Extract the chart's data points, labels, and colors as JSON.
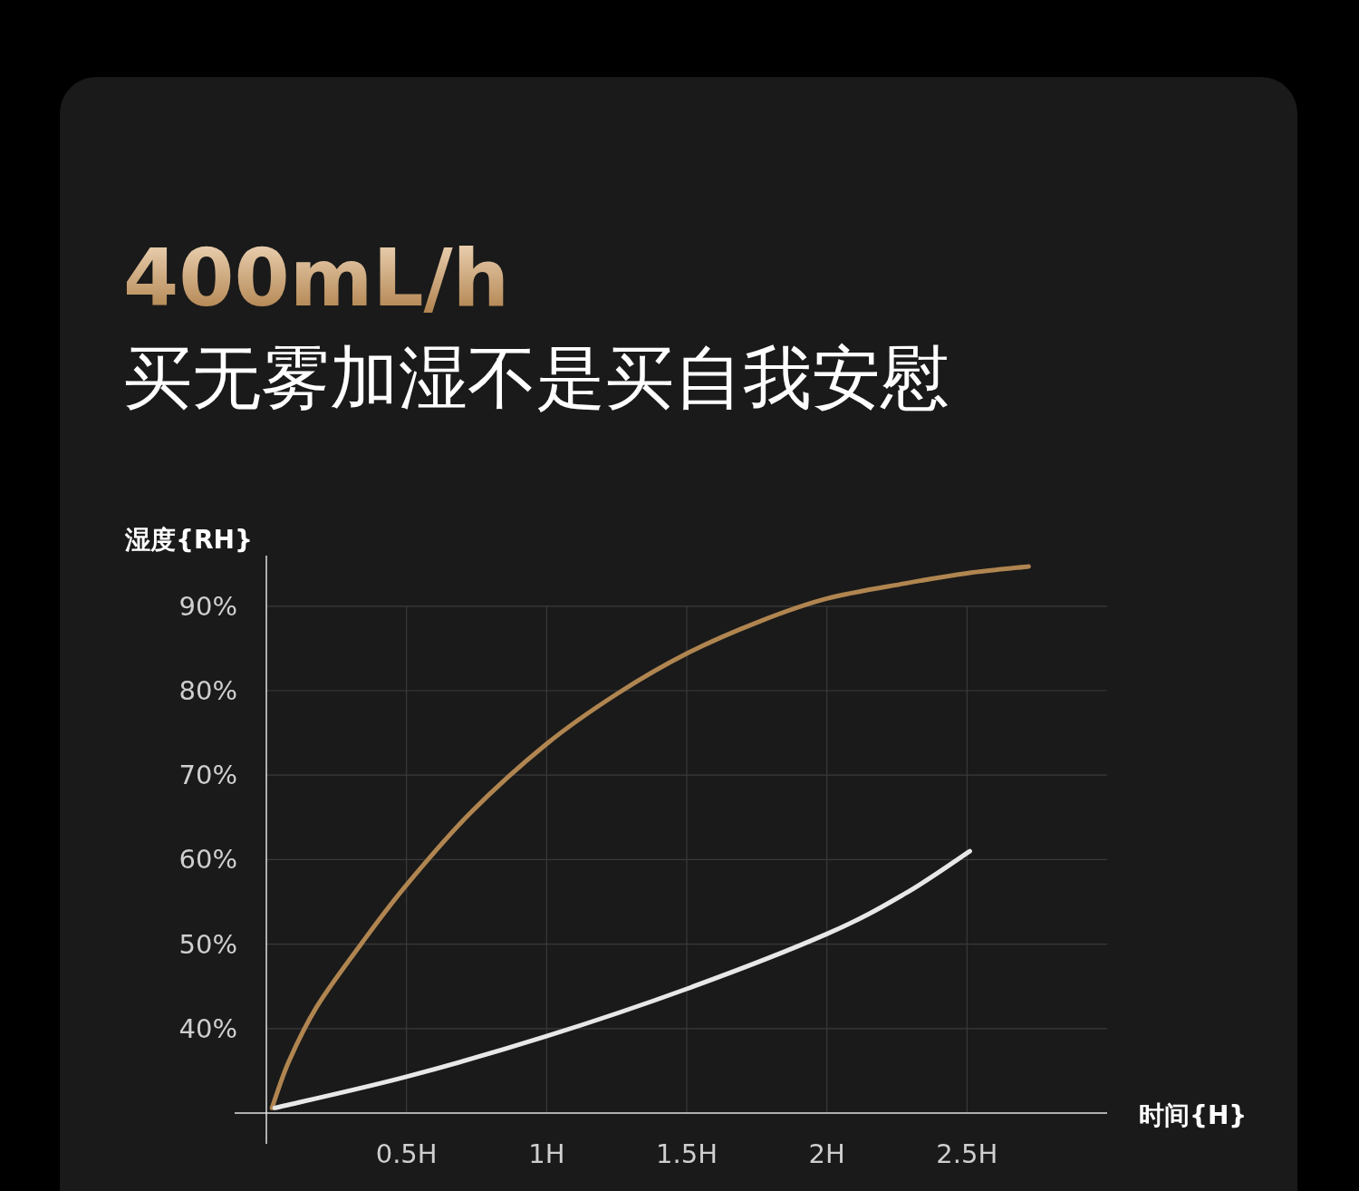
{
  "chart_data": {
    "type": "line",
    "title": "400mL/h",
    "subtitle": "买无雾加湿不是买自我安慰",
    "xlabel": "时间{H}",
    "ylabel": "湿度{RH}",
    "xlim": [
      0,
      3
    ],
    "ylim": [
      30,
      96
    ],
    "xticks": [
      {
        "value": 0.5,
        "label": "0.5H"
      },
      {
        "value": 1,
        "label": "1H"
      },
      {
        "value": 1.5,
        "label": "1.5H"
      },
      {
        "value": 2,
        "label": "2H"
      },
      {
        "value": 2.5,
        "label": "2.5H"
      }
    ],
    "yticks": [
      {
        "value": 40,
        "label": "40%"
      },
      {
        "value": 50,
        "label": "50%"
      },
      {
        "value": 60,
        "label": "60%"
      },
      {
        "value": 70,
        "label": "70%"
      },
      {
        "value": 80,
        "label": "80%"
      },
      {
        "value": 90,
        "label": "90%"
      }
    ],
    "grid": true,
    "marker": "none",
    "line_style": "solid",
    "series": [
      {
        "color": "#b08550",
        "x": [
          0.02,
          0.08,
          0.18,
          0.34,
          0.5,
          0.73,
          1,
          1.25,
          1.5,
          1.76,
          2,
          2.28,
          2.5,
          2.72
        ],
        "values": [
          30.6,
          36.1,
          42.6,
          50.1,
          57,
          65.6,
          73.7,
          79.6,
          84.4,
          88.2,
          90.9,
          92.7,
          93.9,
          94.7
        ]
      },
      {
        "color": "#e8e8e8",
        "x": [
          0.03,
          0.5,
          1,
          1.5,
          2,
          2.28,
          2.51
        ],
        "values": [
          30.6,
          34.3,
          39.1,
          44.7,
          51.2,
          56,
          61
        ]
      }
    ]
  }
}
